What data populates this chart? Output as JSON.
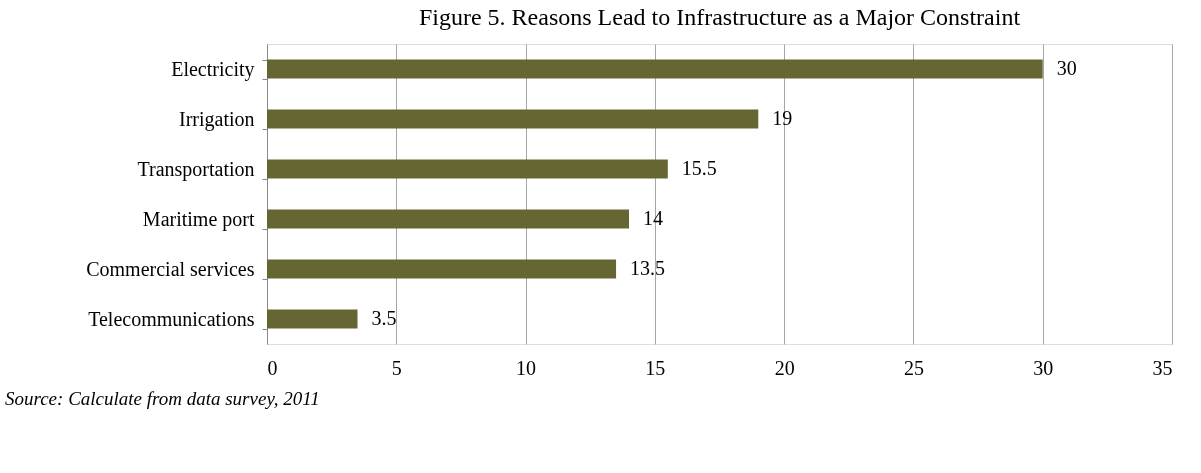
{
  "chart_data": {
    "type": "bar",
    "orientation": "horizontal",
    "title": "Figure 5. Reasons Lead to Infrastructure as a Major Constraint",
    "categories": [
      "Electricity",
      "Irrigation",
      "Transportation",
      "Maritime port",
      "Commercial services",
      "Telecommunications"
    ],
    "values": [
      30,
      19,
      15.5,
      14,
      13.5,
      3.5
    ],
    "color": "#666633",
    "xlim": [
      0,
      35
    ],
    "xticks": [
      0,
      5,
      10,
      15,
      20,
      25,
      30,
      35
    ],
    "grid": "x",
    "data_labels": true,
    "annotations": [
      "Source: Calculate from data survey, 2011"
    ]
  }
}
